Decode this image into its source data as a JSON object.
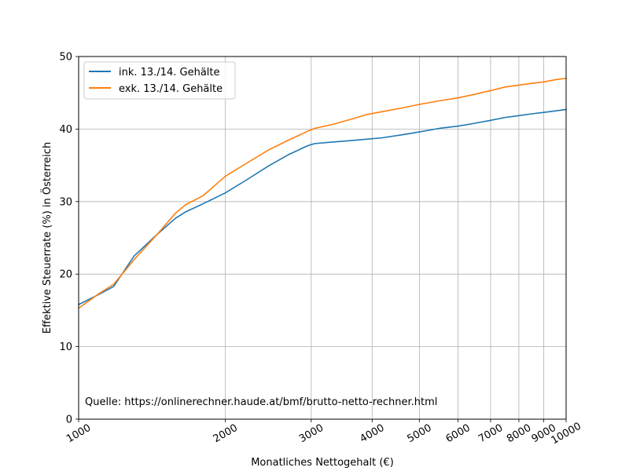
{
  "chart_data": {
    "type": "line",
    "xlabel": "Monatliches Nettogehalt (€)",
    "ylabel": "Effektive Steuerrate (%) in Österreich",
    "xscale": "log",
    "xlim": [
      1000,
      10000
    ],
    "ylim": [
      0,
      50
    ],
    "xticks": [
      1000,
      2000,
      3000,
      4000,
      5000,
      6000,
      7000,
      8000,
      9000,
      10000
    ],
    "xtick_labels": [
      "1000",
      "2000",
      "3000",
      "4000",
      "5000",
      "6000",
      "7000",
      "8000",
      "9000",
      "10000"
    ],
    "yticks": [
      0,
      10,
      20,
      30,
      40,
      50
    ],
    "ytick_labels": [
      "0",
      "10",
      "20",
      "30",
      "40",
      "50"
    ],
    "grid": true,
    "legend_position": "top-left",
    "annotation": "Quelle: https://onlinerechner.haude.at/bmf/brutto-netto-rechner.html",
    "series": [
      {
        "name": "ink. 13./14. Gehälte",
        "color": "#1f77b4",
        "x": [
          1000,
          1100,
          1180,
          1300,
          1450,
          1580,
          1660,
          1800,
          2000,
          2200,
          2450,
          2700,
          2950,
          3050,
          3300,
          3600,
          3900,
          4200,
          4600,
          5000,
          5500,
          6000,
          6500,
          7000,
          7500,
          7900,
          8500,
          9000,
          9500,
          10000
        ],
        "y": [
          15.8,
          17.2,
          18.3,
          22.5,
          25.5,
          27.7,
          28.6,
          29.7,
          31.2,
          32.9,
          34.9,
          36.5,
          37.7,
          38.0,
          38.2,
          38.4,
          38.6,
          38.8,
          39.2,
          39.6,
          40.1,
          40.4,
          40.8,
          41.2,
          41.6,
          41.8,
          42.1,
          42.3,
          42.5,
          42.7
        ]
      },
      {
        "name": "exk. 13./14. Gehälte",
        "color": "#ff7f0e",
        "x": [
          1000,
          1100,
          1180,
          1300,
          1450,
          1580,
          1660,
          1800,
          2000,
          2200,
          2450,
          2700,
          2950,
          3050,
          3300,
          3600,
          3900,
          4200,
          4600,
          5000,
          5500,
          6000,
          6500,
          7000,
          7500,
          7900,
          8500,
          9000,
          9500,
          10000
        ],
        "y": [
          15.3,
          17.3,
          18.6,
          22.0,
          25.5,
          28.4,
          29.6,
          30.8,
          33.5,
          35.2,
          37.1,
          38.5,
          39.7,
          40.1,
          40.6,
          41.3,
          42.0,
          42.4,
          42.9,
          43.4,
          43.9,
          44.3,
          44.8,
          45.3,
          45.8,
          46.0,
          46.3,
          46.5,
          46.8,
          47.0
        ]
      }
    ]
  }
}
